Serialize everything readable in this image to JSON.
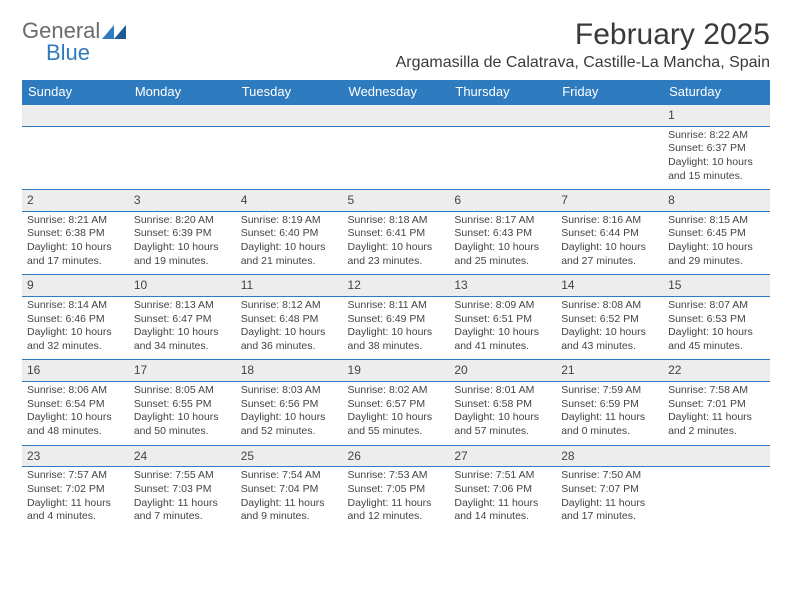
{
  "logo": {
    "text_general": "General",
    "text_blue": "Blue",
    "mark_fill": "#2f7bbf"
  },
  "header": {
    "month_title": "February 2025",
    "location": "Argamasilla de Calatrava, Castille-La Mancha, Spain"
  },
  "styling": {
    "header_bg": "#2f7bbf",
    "header_text": "#ffffff",
    "row_border": "#2f7bbf",
    "daynum_bg": "#ededed",
    "body_text": "#444444",
    "page_bg": "#ffffff",
    "font_family": "Arial",
    "day_fontsize": 12,
    "detail_fontsize": 10.5,
    "title_fontsize": 30,
    "location_fontsize": 16
  },
  "weekdays": [
    "Sunday",
    "Monday",
    "Tuesday",
    "Wednesday",
    "Thursday",
    "Friday",
    "Saturday"
  ],
  "weeks": [
    [
      null,
      null,
      null,
      null,
      null,
      null,
      {
        "day": "1",
        "sunrise": "Sunrise: 8:22 AM",
        "sunset": "Sunset: 6:37 PM",
        "daylight1": "Daylight: 10 hours",
        "daylight2": "and 15 minutes."
      }
    ],
    [
      {
        "day": "2",
        "sunrise": "Sunrise: 8:21 AM",
        "sunset": "Sunset: 6:38 PM",
        "daylight1": "Daylight: 10 hours",
        "daylight2": "and 17 minutes."
      },
      {
        "day": "3",
        "sunrise": "Sunrise: 8:20 AM",
        "sunset": "Sunset: 6:39 PM",
        "daylight1": "Daylight: 10 hours",
        "daylight2": "and 19 minutes."
      },
      {
        "day": "4",
        "sunrise": "Sunrise: 8:19 AM",
        "sunset": "Sunset: 6:40 PM",
        "daylight1": "Daylight: 10 hours",
        "daylight2": "and 21 minutes."
      },
      {
        "day": "5",
        "sunrise": "Sunrise: 8:18 AM",
        "sunset": "Sunset: 6:41 PM",
        "daylight1": "Daylight: 10 hours",
        "daylight2": "and 23 minutes."
      },
      {
        "day": "6",
        "sunrise": "Sunrise: 8:17 AM",
        "sunset": "Sunset: 6:43 PM",
        "daylight1": "Daylight: 10 hours",
        "daylight2": "and 25 minutes."
      },
      {
        "day": "7",
        "sunrise": "Sunrise: 8:16 AM",
        "sunset": "Sunset: 6:44 PM",
        "daylight1": "Daylight: 10 hours",
        "daylight2": "and 27 minutes."
      },
      {
        "day": "8",
        "sunrise": "Sunrise: 8:15 AM",
        "sunset": "Sunset: 6:45 PM",
        "daylight1": "Daylight: 10 hours",
        "daylight2": "and 29 minutes."
      }
    ],
    [
      {
        "day": "9",
        "sunrise": "Sunrise: 8:14 AM",
        "sunset": "Sunset: 6:46 PM",
        "daylight1": "Daylight: 10 hours",
        "daylight2": "and 32 minutes."
      },
      {
        "day": "10",
        "sunrise": "Sunrise: 8:13 AM",
        "sunset": "Sunset: 6:47 PM",
        "daylight1": "Daylight: 10 hours",
        "daylight2": "and 34 minutes."
      },
      {
        "day": "11",
        "sunrise": "Sunrise: 8:12 AM",
        "sunset": "Sunset: 6:48 PM",
        "daylight1": "Daylight: 10 hours",
        "daylight2": "and 36 minutes."
      },
      {
        "day": "12",
        "sunrise": "Sunrise: 8:11 AM",
        "sunset": "Sunset: 6:49 PM",
        "daylight1": "Daylight: 10 hours",
        "daylight2": "and 38 minutes."
      },
      {
        "day": "13",
        "sunrise": "Sunrise: 8:09 AM",
        "sunset": "Sunset: 6:51 PM",
        "daylight1": "Daylight: 10 hours",
        "daylight2": "and 41 minutes."
      },
      {
        "day": "14",
        "sunrise": "Sunrise: 8:08 AM",
        "sunset": "Sunset: 6:52 PM",
        "daylight1": "Daylight: 10 hours",
        "daylight2": "and 43 minutes."
      },
      {
        "day": "15",
        "sunrise": "Sunrise: 8:07 AM",
        "sunset": "Sunset: 6:53 PM",
        "daylight1": "Daylight: 10 hours",
        "daylight2": "and 45 minutes."
      }
    ],
    [
      {
        "day": "16",
        "sunrise": "Sunrise: 8:06 AM",
        "sunset": "Sunset: 6:54 PM",
        "daylight1": "Daylight: 10 hours",
        "daylight2": "and 48 minutes."
      },
      {
        "day": "17",
        "sunrise": "Sunrise: 8:05 AM",
        "sunset": "Sunset: 6:55 PM",
        "daylight1": "Daylight: 10 hours",
        "daylight2": "and 50 minutes."
      },
      {
        "day": "18",
        "sunrise": "Sunrise: 8:03 AM",
        "sunset": "Sunset: 6:56 PM",
        "daylight1": "Daylight: 10 hours",
        "daylight2": "and 52 minutes."
      },
      {
        "day": "19",
        "sunrise": "Sunrise: 8:02 AM",
        "sunset": "Sunset: 6:57 PM",
        "daylight1": "Daylight: 10 hours",
        "daylight2": "and 55 minutes."
      },
      {
        "day": "20",
        "sunrise": "Sunrise: 8:01 AM",
        "sunset": "Sunset: 6:58 PM",
        "daylight1": "Daylight: 10 hours",
        "daylight2": "and 57 minutes."
      },
      {
        "day": "21",
        "sunrise": "Sunrise: 7:59 AM",
        "sunset": "Sunset: 6:59 PM",
        "daylight1": "Daylight: 11 hours",
        "daylight2": "and 0 minutes."
      },
      {
        "day": "22",
        "sunrise": "Sunrise: 7:58 AM",
        "sunset": "Sunset: 7:01 PM",
        "daylight1": "Daylight: 11 hours",
        "daylight2": "and 2 minutes."
      }
    ],
    [
      {
        "day": "23",
        "sunrise": "Sunrise: 7:57 AM",
        "sunset": "Sunset: 7:02 PM",
        "daylight1": "Daylight: 11 hours",
        "daylight2": "and 4 minutes."
      },
      {
        "day": "24",
        "sunrise": "Sunrise: 7:55 AM",
        "sunset": "Sunset: 7:03 PM",
        "daylight1": "Daylight: 11 hours",
        "daylight2": "and 7 minutes."
      },
      {
        "day": "25",
        "sunrise": "Sunrise: 7:54 AM",
        "sunset": "Sunset: 7:04 PM",
        "daylight1": "Daylight: 11 hours",
        "daylight2": "and 9 minutes."
      },
      {
        "day": "26",
        "sunrise": "Sunrise: 7:53 AM",
        "sunset": "Sunset: 7:05 PM",
        "daylight1": "Daylight: 11 hours",
        "daylight2": "and 12 minutes."
      },
      {
        "day": "27",
        "sunrise": "Sunrise: 7:51 AM",
        "sunset": "Sunset: 7:06 PM",
        "daylight1": "Daylight: 11 hours",
        "daylight2": "and 14 minutes."
      },
      {
        "day": "28",
        "sunrise": "Sunrise: 7:50 AM",
        "sunset": "Sunset: 7:07 PM",
        "daylight1": "Daylight: 11 hours",
        "daylight2": "and 17 minutes."
      },
      null
    ]
  ]
}
